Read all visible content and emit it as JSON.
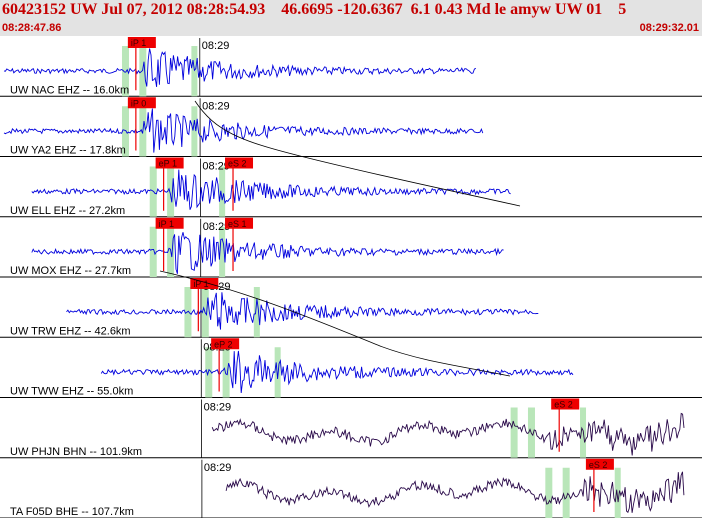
{
  "header": {
    "title": "60423152 UW Jul 07, 2012 08:28:54.93    46.6695 -120.6367  6.1 0.43 Md le amyw UW 01    5",
    "start_time": "08:28:47.86",
    "end_time": "08:29:32.01"
  },
  "colors": {
    "header_bg": "#e3e3e3",
    "header_text": "#c40000",
    "trace_short_period": "#0000dd",
    "trace_broadband": "#2a0a4a",
    "pick_box": "#ee0000",
    "pick_window": "#b9e6b9"
  },
  "minute_mark": "08:29",
  "channels": [
    {
      "label": "UW NAC EHZ -- 16.0km",
      "kind": "sp",
      "trace_start": 0.0,
      "trace_end": 0.68,
      "p_pick": "iP 1",
      "s_pick": "",
      "arrival": 0.24,
      "amp": 0.45
    },
    {
      "label": "UW YA2 EHZ -- 17.8km",
      "kind": "sp",
      "trace_start": 0.0,
      "trace_end": 0.69,
      "p_pick": "iP 0",
      "s_pick": "",
      "arrival": 0.24,
      "amp": 0.5
    },
    {
      "label": "UW ELL EHZ -- 27.2km",
      "kind": "sp",
      "trace_start": 0.04,
      "trace_end": 0.73,
      "p_pick": "eP 1",
      "s_pick": "eS 2",
      "arrival": 0.28,
      "amp": 0.55
    },
    {
      "label": "UW MOX EHZ -- 27.7km",
      "kind": "sp",
      "trace_start": 0.04,
      "trace_end": 0.72,
      "p_pick": "iP 1",
      "s_pick": "eS 1",
      "arrival": 0.28,
      "amp": 0.5
    },
    {
      "label": "UW TRW EHZ -- 42.6km",
      "kind": "sp",
      "trace_start": 0.09,
      "trace_end": 0.77,
      "p_pick": "iP 1",
      "s_pick": "",
      "arrival": 0.33,
      "amp": 0.45
    },
    {
      "label": "UW TWW EHZ -- 55.0km",
      "kind": "sp",
      "trace_start": 0.14,
      "trace_end": 0.82,
      "p_pick": "eP 2",
      "s_pick": "",
      "arrival": 0.36,
      "amp": 0.4
    },
    {
      "label": "UW PHJN BHN -- 101.9km",
      "kind": "bb",
      "trace_start": 0.3,
      "trace_end": 0.98,
      "p_pick": "",
      "s_pick": "eS 2",
      "arrival": 0.8,
      "amp": 0.35
    },
    {
      "label": "TA F05D BHE -- 107.7km",
      "kind": "bb",
      "trace_start": 0.32,
      "trace_end": 0.98,
      "p_pick": "",
      "s_pick": "eS 2",
      "arrival": 0.85,
      "amp": 0.35
    }
  ]
}
